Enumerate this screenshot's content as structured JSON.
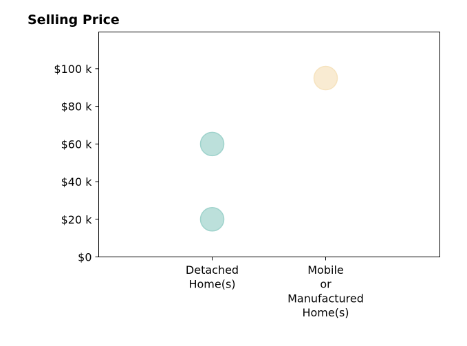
{
  "chart_data": {
    "type": "scatter",
    "title": "Selling Price",
    "xlabel": "",
    "ylabel": "",
    "categories": [
      [
        "Detached",
        "Home(s)"
      ],
      [
        "Mobile",
        "or",
        "Manufactured",
        "Home(s)"
      ]
    ],
    "y_ticks": [
      "$0",
      "$20 k",
      "$40 k",
      "$60 k",
      "$80 k",
      "$100 k"
    ],
    "y_tick_values": [
      0,
      20000,
      40000,
      60000,
      80000,
      100000
    ],
    "ylim": [
      0,
      119500
    ],
    "grid": false,
    "points": [
      {
        "category": 0,
        "y": 20000,
        "color": "#9fd3cc"
      },
      {
        "category": 0,
        "y": 60000,
        "color": "#9fd3cc"
      },
      {
        "category": 1,
        "y": 95000,
        "color": "#f6e3bf"
      }
    ]
  }
}
